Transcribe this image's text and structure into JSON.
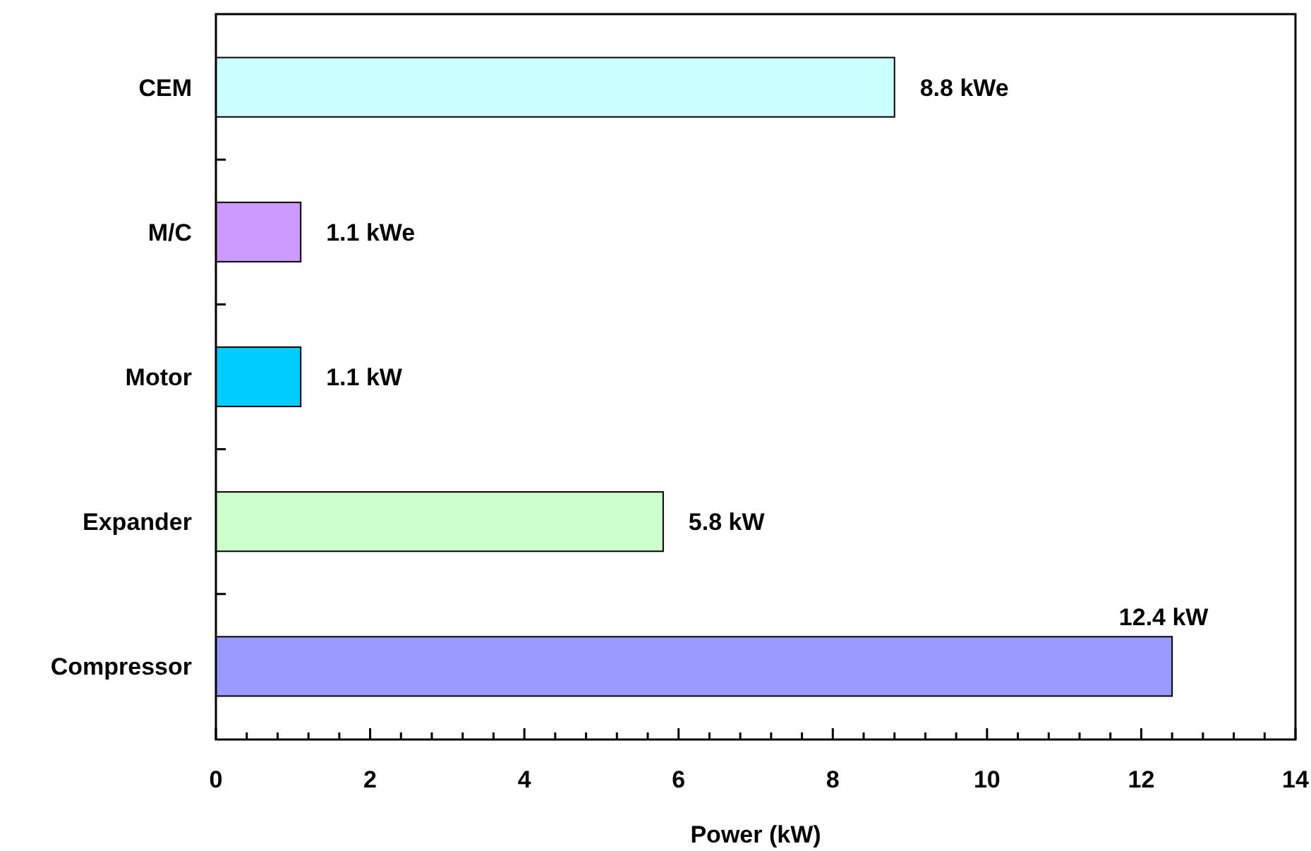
{
  "chart_data": {
    "type": "bar",
    "orientation": "horizontal",
    "xlabel": "Power (kW)",
    "categories": [
      "CEM",
      "M/C",
      "Motor",
      "Expander",
      "Compressor"
    ],
    "values": [
      8.8,
      1.1,
      1.1,
      5.8,
      12.4
    ],
    "colors": [
      "#ccffff",
      "#cc99ff",
      "#00ccff",
      "#ccffcc",
      "#9999ff"
    ],
    "value_labels": [
      "8.8 kWe",
      "1.1 kWe",
      "1.1 kW",
      "5.8 kW",
      "12.4 kW"
    ],
    "xlim": [
      0,
      14
    ],
    "xticks": [
      0,
      {
        "value": 0.4,
        "label": null
      },
      {
        "value": 0.8,
        "label": null
      },
      {
        "value": 1.2,
        "label": null
      },
      {
        "value": 1.6,
        "label": null
      },
      2,
      {
        "value": 2.4,
        "label": null
      },
      {
        "value": 2.8,
        "label": null
      },
      {
        "value": 3.2,
        "label": null
      },
      {
        "value": 3.6,
        "label": null
      },
      4,
      {
        "value": 4.4,
        "label": null
      },
      {
        "value": 4.8,
        "label": null
      },
      {
        "value": 5.2,
        "label": null
      },
      {
        "value": 5.6,
        "label": null
      },
      6,
      {
        "value": 6.4,
        "label": null
      },
      {
        "value": 6.8,
        "label": null
      },
      {
        "value": 7.2,
        "label": null
      },
      {
        "value": 7.6,
        "label": null
      },
      8,
      {
        "value": 8.4,
        "label": null
      },
      {
        "value": 8.8,
        "label": null
      },
      {
        "value": 9.2,
        "label": null
      },
      {
        "value": 9.6,
        "label": null
      },
      10,
      {
        "value": 10.4,
        "label": null
      },
      {
        "value": 10.8,
        "label": null
      },
      {
        "value": 11.2,
        "label": null
      },
      {
        "value": 11.6,
        "label": null
      },
      12,
      {
        "value": 12.4,
        "label": null
      },
      {
        "value": 12.8,
        "label": null
      },
      {
        "value": 13.2,
        "label": null
      },
      {
        "value": 13.6,
        "label": null
      },
      14
    ],
    "grid": false
  }
}
